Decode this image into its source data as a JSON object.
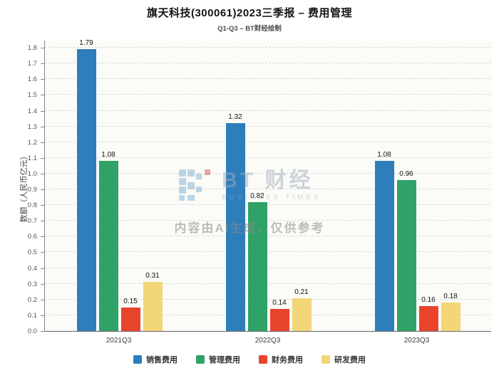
{
  "watermark": {
    "brand": "BT 财经",
    "brand_sub": "BUSINESS TIMES",
    "notice": "内容由AI生成，仅供参考"
  },
  "chart_data": {
    "type": "bar",
    "title": "旗天科技(300061)2023三季报 – 费用管理",
    "subtitle": "Q1-Q3 – BT财经绘制",
    "categories": [
      "2021Q3",
      "2022Q3",
      "2023Q3"
    ],
    "series": [
      {
        "name": "销售费用",
        "color": "#2e7ebc",
        "values": [
          1.79,
          1.32,
          1.08
        ]
      },
      {
        "name": "管理费用",
        "color": "#2fa268",
        "values": [
          1.08,
          0.82,
          0.96
        ]
      },
      {
        "name": "财务费用",
        "color": "#e8442c",
        "values": [
          0.15,
          0.14,
          0.16
        ]
      },
      {
        "name": "研发费用",
        "color": "#f3d677",
        "values": [
          0.31,
          0.21,
          0.18
        ]
      }
    ],
    "xlabel": "",
    "ylabel": "数额（人民币亿元）",
    "ylim": [
      0,
      1.85
    ],
    "yticks": [
      0.0,
      0.1,
      0.2,
      0.3,
      0.4,
      0.5,
      0.6,
      0.7,
      0.8,
      0.9,
      1.0,
      1.1,
      1.2,
      1.3,
      1.4,
      1.5,
      1.6,
      1.7,
      1.8
    ],
    "grid": true,
    "legend_position": "bottom"
  }
}
